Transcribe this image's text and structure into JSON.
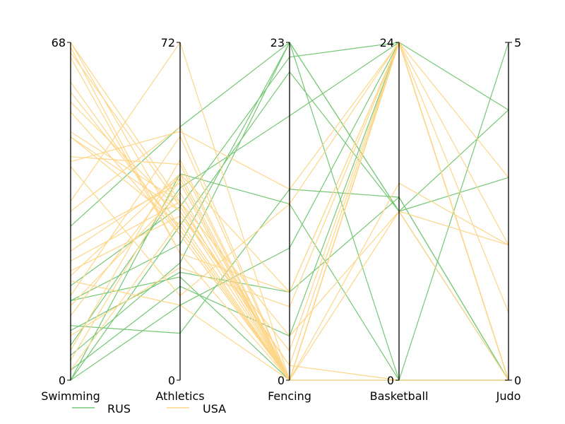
{
  "chart_data": {
    "type": "parallel-coordinates",
    "title": "",
    "dimensions": [
      {
        "name": "Swimming",
        "range": [
          0,
          68
        ]
      },
      {
        "name": "Athletics",
        "range": [
          0,
          72
        ]
      },
      {
        "name": "Fencing",
        "range": [
          0,
          23
        ]
      },
      {
        "name": "Basketball",
        "range": [
          0,
          24
        ]
      },
      {
        "name": "Judo",
        "range": [
          0,
          5
        ]
      }
    ],
    "legend": {
      "placement": "bottom-left"
    },
    "series": [
      {
        "name": "RUS",
        "color": "#76c776",
        "rows": [
          [
            31,
            54,
            23,
            12,
            0
          ],
          [
            19,
            37,
            22,
            24,
            0
          ],
          [
            16,
            29,
            23,
            12,
            4
          ],
          [
            16,
            22,
            0,
            0,
            5
          ],
          [
            0,
            33,
            21,
            12,
            3
          ],
          [
            5,
            25,
            23,
            0,
            0
          ],
          [
            7,
            41,
            18,
            24,
            0
          ],
          [
            11,
            10,
            13,
            13,
            0
          ],
          [
            0,
            16,
            9,
            24,
            0
          ],
          [
            2,
            20,
            3,
            24,
            4
          ],
          [
            0,
            44,
            12,
            0,
            0
          ],
          [
            10,
            23,
            6,
            13,
            0
          ]
        ]
      },
      {
        "name": "USA",
        "color": "#fdd68a",
        "rows": [
          [
            68,
            32,
            0,
            24,
            0
          ],
          [
            67,
            27,
            0,
            24,
            1
          ],
          [
            60,
            31,
            0,
            12,
            2
          ],
          [
            50,
            38,
            0,
            24,
            0
          ],
          [
            36,
            72,
            0,
            24,
            0
          ],
          [
            28,
            42,
            0,
            24,
            2
          ],
          [
            49,
            33,
            0,
            24,
            0
          ],
          [
            58,
            32,
            0,
            24,
            0
          ],
          [
            66,
            37,
            1,
            24,
            0
          ],
          [
            65,
            27,
            6,
            24,
            0
          ],
          [
            56,
            36,
            0,
            14,
            2
          ],
          [
            44,
            53,
            13,
            24,
            0
          ],
          [
            17,
            52,
            0,
            24,
            0
          ],
          [
            54,
            31,
            0,
            0,
            0
          ],
          [
            22,
            35,
            2,
            24,
            0
          ],
          [
            24,
            38,
            3,
            12,
            0
          ],
          [
            21,
            44,
            6,
            24,
            0
          ],
          [
            9,
            24,
            5,
            24,
            0
          ],
          [
            26,
            43,
            0,
            24,
            0
          ],
          [
            15,
            40,
            0,
            24,
            0
          ],
          [
            49,
            36,
            1,
            0,
            0
          ],
          [
            20,
            16,
            0,
            24,
            3
          ],
          [
            4,
            43,
            0,
            24,
            0
          ],
          [
            43,
            18,
            12,
            24,
            0
          ],
          [
            34,
            54,
            0,
            24,
            0
          ],
          [
            13,
            44,
            0,
            24,
            0
          ],
          [
            6,
            47,
            0,
            24,
            0
          ],
          [
            68,
            38,
            0,
            24,
            0
          ],
          [
            45,
            46,
            0,
            24,
            0
          ],
          [
            2,
            34,
            0,
            24,
            0
          ]
        ]
      }
    ]
  }
}
